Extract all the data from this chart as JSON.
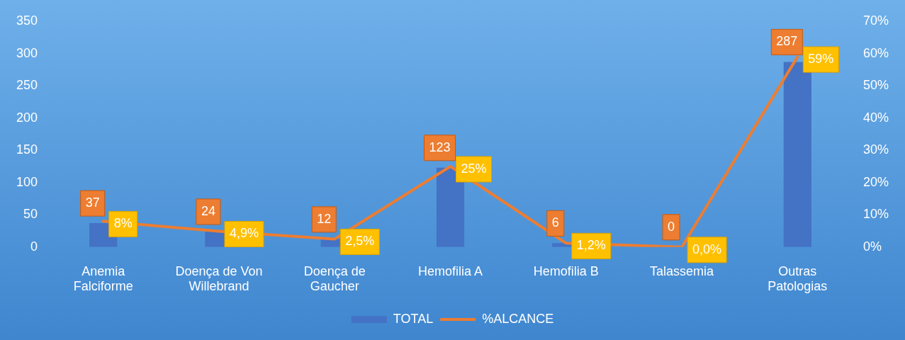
{
  "chart_data": {
    "type": "bar",
    "categories": [
      "Anemia Falciforme",
      "Doença de Von Willebrand",
      "Doença de Gaucher",
      "Hemofilia A",
      "Hemofilia B",
      "Talassemia",
      "Outras Patologias"
    ],
    "series": [
      {
        "name": "TOTAL",
        "color": "#4472c4",
        "values": [
          37,
          24,
          12,
          123,
          6,
          0,
          287
        ],
        "value_labels": [
          "37",
          "24",
          "12",
          "123",
          "6",
          "0",
          "287"
        ]
      },
      {
        "name": "%ALCANCE",
        "type": "line",
        "axis": "y2",
        "color": "#ed7d31",
        "values": [
          8,
          4.9,
          2.5,
          25,
          1.2,
          0.0,
          59
        ],
        "value_labels": [
          "8%",
          "4,9%",
          "2,5%",
          "25%",
          "1,2%",
          "0,0%",
          "59%"
        ]
      }
    ],
    "ylim": [
      0,
      350
    ],
    "yticks": [
      0,
      50,
      100,
      150,
      200,
      250,
      300,
      350
    ],
    "y2lim": [
      0,
      70
    ],
    "y2ticks": [
      {
        "value": 0,
        "label": "0%"
      },
      {
        "value": 10,
        "label": "10%"
      },
      {
        "value": 20,
        "label": "20%"
      },
      {
        "value": 30,
        "label": "30%"
      },
      {
        "value": 40,
        "label": "40%"
      },
      {
        "value": 50,
        "label": "50%"
      },
      {
        "value": 60,
        "label": "60%"
      },
      {
        "value": 70,
        "label": "70%"
      }
    ],
    "grid": false,
    "legend": "bottom",
    "marker": "none",
    "line_style": "solid"
  }
}
